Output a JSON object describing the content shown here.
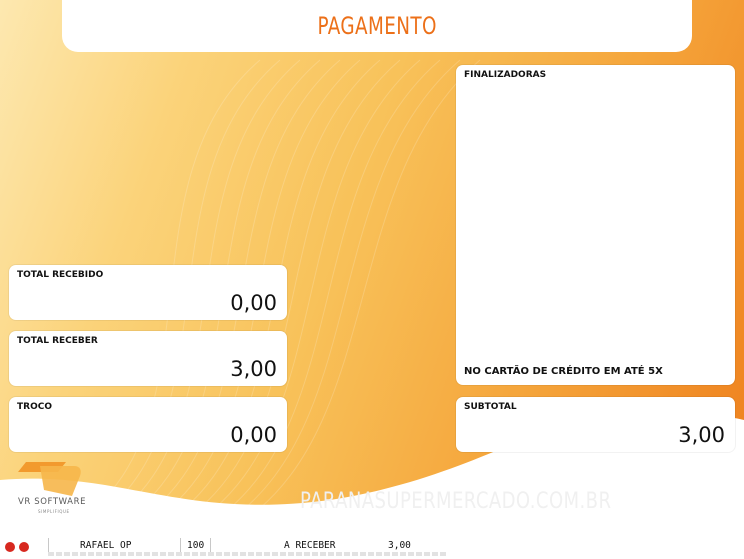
{
  "header": {
    "title": "PAGAMENTO"
  },
  "panels": {
    "total_recebido": {
      "label": "TOTAL RECEBIDO",
      "value": "0,00"
    },
    "total_receber": {
      "label": "TOTAL RECEBER",
      "value": "3,00"
    },
    "troco": {
      "label": "TROCO",
      "value": "0,00"
    },
    "finalizadoras": {
      "label": "FINALIZADORAS",
      "note": "NO CARTÃO DE CRÉDITO EM ATÉ 5X"
    },
    "subtotal": {
      "label": "SUBTOTAL",
      "value": "3,00"
    }
  },
  "branding": {
    "logo_text": "VR SOFTWARE",
    "logo_sub": "SIMPLIFIQUE",
    "site": "PARANASUPERMERCADO.COM.BR"
  },
  "status_bar": {
    "operator": "RAFAEL OP",
    "terminal": "100",
    "status": "A RECEBER",
    "amount": "3,00"
  },
  "colors": {
    "accent": "#ec7019",
    "orange_dark": "#ee7f1c",
    "yellow_light": "#fde8b0"
  }
}
